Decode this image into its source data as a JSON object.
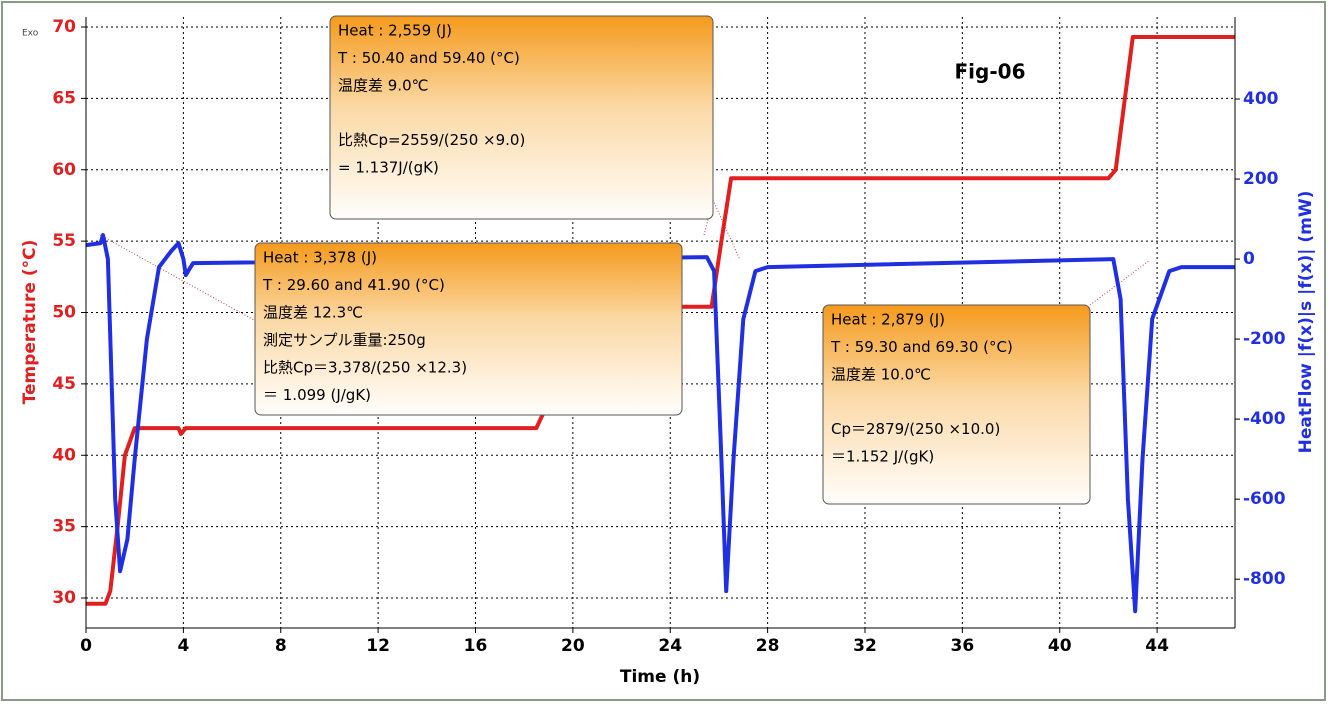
{
  "chart_data": {
    "type": "line",
    "title": "Fig-06",
    "corner_label": "Exo",
    "xlabel": "Time (h)",
    "ylabel": "Temperature (°C)",
    "y2label": "HeatFlow |f(x)|s |f(x)| (mW)",
    "xlim": [
      0,
      47.2
    ],
    "ylim": [
      27.9,
      70.7
    ],
    "y2lim": [
      -922,
      605
    ],
    "xticks": [
      0,
      4,
      8,
      12,
      16,
      20,
      24,
      28,
      32,
      36,
      40,
      44
    ],
    "yticks": [
      30,
      35,
      40,
      45,
      50,
      55,
      60,
      65,
      70
    ],
    "y2ticks": [
      -800,
      -600,
      -400,
      -200,
      0,
      200,
      400
    ],
    "grid": true,
    "series": [
      {
        "name": "Temperature",
        "color": "#e02020",
        "axis": "y",
        "x": [
          0,
          0.8,
          1.0,
          1.3,
          1.6,
          2.0,
          3.8,
          3.9,
          4.1,
          18.5,
          18.8,
          19.5,
          25.7,
          26.1,
          26.5,
          42.0,
          42.3,
          43.0,
          47.2
        ],
        "values": [
          29.6,
          29.6,
          30.5,
          35,
          40,
          41.9,
          41.9,
          41.5,
          41.9,
          41.9,
          43,
          50.4,
          50.4,
          55,
          59.4,
          59.4,
          60,
          69.3,
          69.3
        ]
      },
      {
        "name": "HeatFlow",
        "color": "#2030e0",
        "axis": "y2",
        "x": [
          0,
          0.6,
          0.7,
          0.9,
          1.2,
          1.4,
          1.7,
          2.0,
          2.5,
          3.0,
          3.5,
          3.8,
          4.0,
          4.1,
          4.4,
          25.5,
          25.8,
          26.1,
          26.3,
          26.6,
          27.0,
          27.5,
          28,
          42.2,
          42.5,
          42.8,
          43.1,
          43.4,
          43.8,
          44.5,
          45,
          47.2
        ],
        "values": [
          35,
          40,
          60,
          0,
          -600,
          -780,
          -700,
          -500,
          -200,
          -20,
          20,
          40,
          0,
          -40,
          -10,
          5,
          -30,
          -500,
          -830,
          -500,
          -150,
          -30,
          -20,
          0,
          -100,
          -600,
          -880,
          -500,
          -150,
          -30,
          -20,
          -20
        ]
      }
    ],
    "annotations": [
      {
        "paragraphs": [
          [
            "Heat : 2,559 (J)",
            "T : 50.40 and 59.40 (°C)",
            "温度差  9.0℃"
          ],
          [
            "比熱Cp=2559/(250 ×9.0)",
            "        = 1.137J/(gK)"
          ]
        ]
      },
      {
        "paragraphs": [
          [
            "Heat : 3,378 (J)",
            "T : 29.60 and 41.90 (°C)",
            "温度差  12.3℃",
            "測定サンプル重量:250g",
            "比熱Cp＝3,378/(250 ×12.3)",
            "       ＝ 1.099 (J/gK)"
          ]
        ]
      },
      {
        "paragraphs": [
          [
            "Heat : 2,879 (J)",
            "T : 59.30 and 69.30 (°C)",
            "温度差  10.0℃"
          ],
          [
            "Cp＝2879/(250 ×10.0)",
            "   ＝1.152 J/(gK)"
          ]
        ]
      }
    ]
  }
}
